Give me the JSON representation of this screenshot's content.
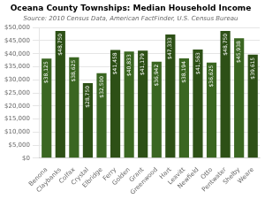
{
  "chart_data": {
    "type": "bar",
    "title": "Oceana County Townships: Median Household Income",
    "subtitle": "Source: 2010 Census Data, American FactFinder, U.S. Census Bureau",
    "categories": [
      "Benona",
      "Claybanks",
      "Colfax",
      "Crystal",
      "Elbridge",
      "Ferry",
      "Golden",
      "Grant",
      "Greenwood",
      "Hart",
      "Leavitt",
      "Newfield",
      "Otto",
      "Pentwater",
      "Shelby",
      "Weare"
    ],
    "values": [
      38125,
      48750,
      38625,
      28750,
      32500,
      41458,
      40833,
      41179,
      36942,
      47333,
      38194,
      41563,
      36625,
      48750,
      45938,
      39615
    ],
    "value_labels": [
      "$38,125",
      "$48,750",
      "$38,625",
      "$28,750",
      "$32,500",
      "$41,458",
      "$40,833",
      "$41,179",
      "$36,942",
      "$47,333",
      "$38,194",
      "$41,563",
      "$36,625",
      "$48,750",
      "$45,938",
      "$39,615"
    ],
    "colors": [
      "#3a6621",
      "#2d5016",
      "#3a6621",
      "#2d5016",
      "#3a6621",
      "#2d5016",
      "#3a6621",
      "#2d5016",
      "#3a6621",
      "#2d5016",
      "#3a6621",
      "#2d5016",
      "#3a6621",
      "#2d5016",
      "#3a6621",
      "#2d5016"
    ],
    "ylim": [
      0,
      50000
    ],
    "yticks": [
      {
        "value": 0,
        "label": "$0"
      },
      {
        "value": 5000,
        "label": "$5,000"
      },
      {
        "value": 10000,
        "label": "$10,000"
      },
      {
        "value": 15000,
        "label": "$15,000"
      },
      {
        "value": 20000,
        "label": "$20,000"
      },
      {
        "value": 25000,
        "label": "$25,000"
      },
      {
        "value": 30000,
        "label": "$30,000"
      },
      {
        "value": 35000,
        "label": "$35,000"
      },
      {
        "value": 40000,
        "label": "$40,000"
      },
      {
        "value": 45000,
        "label": "$45,000"
      },
      {
        "value": 50000,
        "label": "$50,000"
      }
    ],
    "grid": true,
    "data_labels": true
  }
}
